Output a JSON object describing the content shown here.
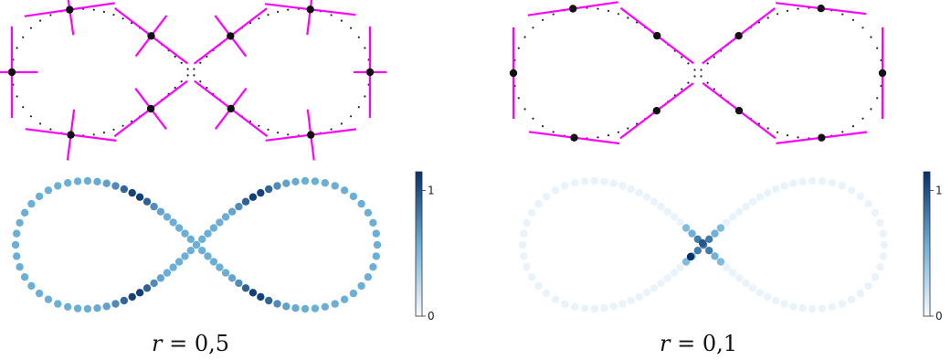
{
  "panels": [
    {
      "id": "left",
      "caption": {
        "symbol": "r",
        "value": "= 0,5"
      },
      "colorbar": {
        "ticks": [
          "1",
          "0"
        ],
        "range": [
          0,
          1.15
        ]
      },
      "point_count": 100,
      "tangent_points": 10,
      "cross_markers": true
    },
    {
      "id": "right",
      "caption": {
        "symbol": "r",
        "value": "= 0,1"
      },
      "colorbar": {
        "ticks": [
          "1",
          "0"
        ],
        "range": [
          0,
          1.15
        ]
      },
      "point_count": 100,
      "tangent_points": 10,
      "cross_markers": false
    }
  ],
  "colors": {
    "tangent": "#ff00ff",
    "dotted_curve": "#222222",
    "marker": "#111111",
    "cmap_low": "#f7fbff",
    "cmap_mid": "#6baed6",
    "cmap_high": "#08306b"
  }
}
